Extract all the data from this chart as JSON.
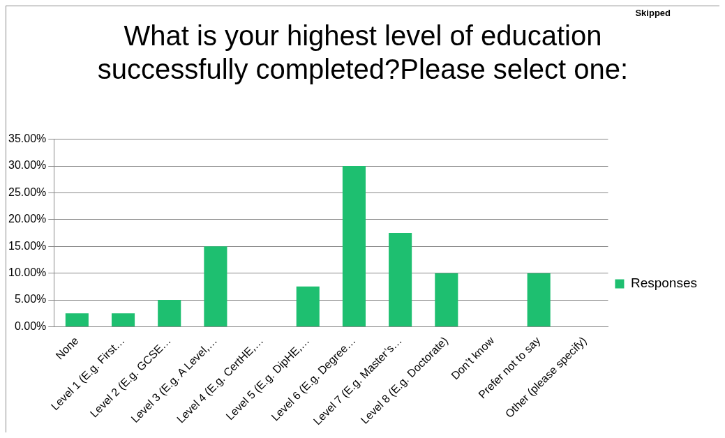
{
  "chart_data": {
    "type": "bar",
    "title": "What is your highest level of education successfully completed?Please select one:",
    "annotations": [
      "Skipped"
    ],
    "categories": [
      "None",
      "Level 1 (E.g. First…",
      "Level 2 (E.g. GCSE…",
      "Level 3 (E.g. A Level,…",
      "Level 4 (E.g. CertHE,…",
      "Level 5 (E.g. DipHE,…",
      "Level 6 (E.g. Degree…",
      "Level 7 (E.g. Master’s…",
      "Level 8 (E.g. Doctorate)",
      "Don’t know",
      "Prefer not to say",
      "Other (please specify)"
    ],
    "series": [
      {
        "name": "Responses",
        "color": "#1ebf70",
        "values": [
          2.5,
          2.5,
          5,
          15,
          0,
          7.5,
          30,
          17.5,
          10,
          0,
          10,
          0
        ]
      }
    ],
    "ylim": [
      0,
      35
    ],
    "yticks": [
      {
        "value": 0,
        "label": "0.00%"
      },
      {
        "value": 5,
        "label": "5.00%"
      },
      {
        "value": 10,
        "label": "10.00%"
      },
      {
        "value": 15,
        "label": "15.00%"
      },
      {
        "value": 20,
        "label": "20.00%"
      },
      {
        "value": 25,
        "label": "25.00%"
      },
      {
        "value": 30,
        "label": "30.00%"
      },
      {
        "value": 35,
        "label": "35.00%"
      }
    ],
    "grid": "y",
    "legend": "right"
  }
}
